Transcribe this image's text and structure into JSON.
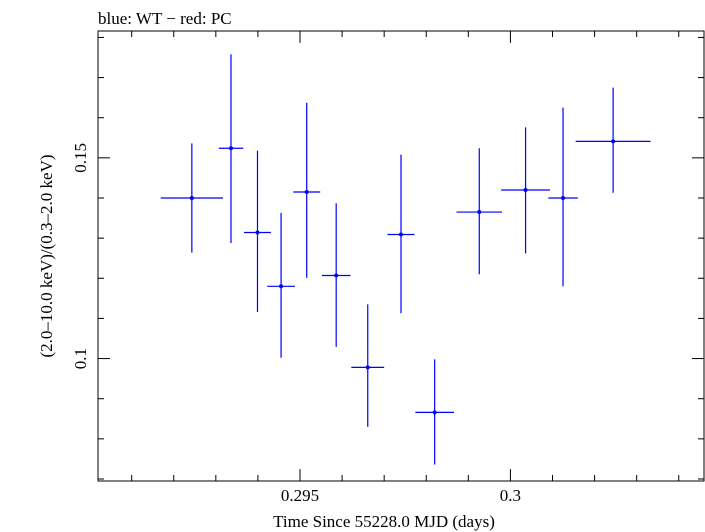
{
  "chart_data": {
    "type": "scatter",
    "title": "blue: WT − red: PC",
    "xlabel": "Time Since 55228.0 MJD (days)",
    "ylabel": "(2.0–10.0 keV)/(0.3–2.0 keV)",
    "xlim": [
      0.2902,
      0.3046
    ],
    "ylim": [
      0.0695,
      0.1816
    ],
    "x_ticks": [
      {
        "value": 0.295,
        "label": "0.295"
      },
      {
        "value": 0.3,
        "label": "0.3"
      }
    ],
    "y_ticks": [
      {
        "value": 0.1,
        "label": "0.1"
      },
      {
        "value": 0.15,
        "label": "0.15"
      }
    ],
    "grid": false,
    "series": [
      {
        "color": "#0000ff",
        "points": [
          {
            "x": 0.29243,
            "xerr": 0.00074,
            "y": 0.14,
            "yerr_low": 0.0136,
            "yerr_high": 0.0136
          },
          {
            "x": 0.29336,
            "xerr": 0.00029,
            "y": 0.1524,
            "yerr_low": 0.0236,
            "yerr_high": 0.0234
          },
          {
            "x": 0.29399,
            "xerr": 0.00032,
            "y": 0.1314,
            "yerr_low": 0.0198,
            "yerr_high": 0.0204
          },
          {
            "x": 0.29455,
            "xerr": 0.00033,
            "y": 0.118,
            "yerr_low": 0.0178,
            "yerr_high": 0.0183
          },
          {
            "x": 0.29516,
            "xerr": 0.00032,
            "y": 0.1415,
            "yerr_low": 0.0214,
            "yerr_high": 0.0222
          },
          {
            "x": 0.29586,
            "xerr": 0.00034,
            "y": 0.1207,
            "yerr_low": 0.0178,
            "yerr_high": 0.018
          },
          {
            "x": 0.29661,
            "xerr": 0.00039,
            "y": 0.0978,
            "yerr_low": 0.0148,
            "yerr_high": 0.0157
          },
          {
            "x": 0.2974,
            "xerr": 0.00032,
            "y": 0.1309,
            "yerr_low": 0.0196,
            "yerr_high": 0.0199
          },
          {
            "x": 0.2982,
            "xerr": 0.00046,
            "y": 0.0866,
            "yerr_low": 0.013,
            "yerr_high": 0.0132
          },
          {
            "x": 0.29926,
            "xerr": 0.00054,
            "y": 0.1365,
            "yerr_low": 0.0155,
            "yerr_high": 0.0159
          },
          {
            "x": 0.30036,
            "xerr": 0.00058,
            "y": 0.142,
            "yerr_low": 0.0158,
            "yerr_high": 0.0156
          },
          {
            "x": 0.30125,
            "xerr": 0.00035,
            "y": 0.14,
            "yerr_low": 0.022,
            "yerr_high": 0.0225
          },
          {
            "x": 0.30244,
            "xerr": 0.00089,
            "y": 0.1541,
            "yerr_low": 0.0128,
            "yerr_high": 0.0134
          }
        ]
      }
    ]
  }
}
